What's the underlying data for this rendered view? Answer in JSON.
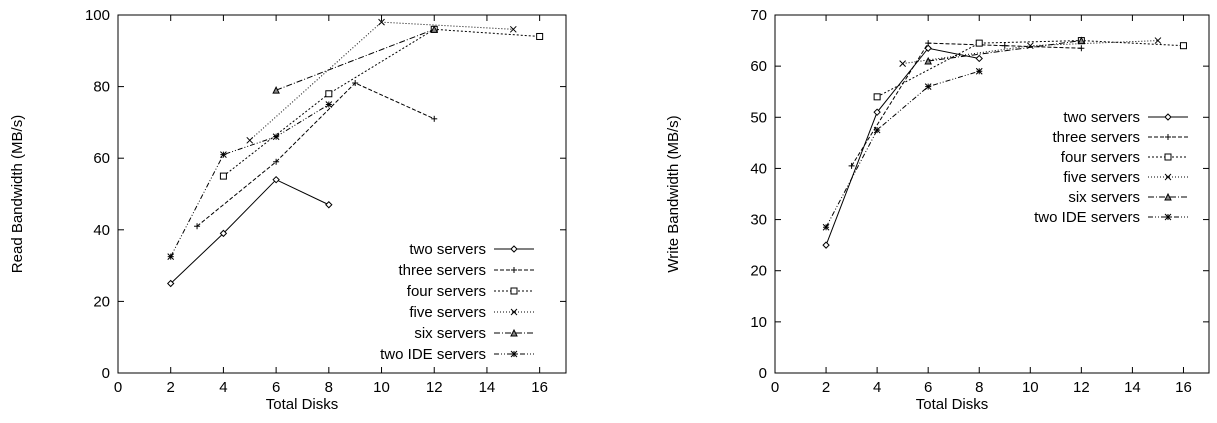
{
  "chart_data": [
    {
      "type": "line",
      "xlabel": "Total Disks",
      "ylabel": "Read Bandwidth (MB/s)",
      "xlim": [
        0,
        17
      ],
      "ylim": [
        0,
        100
      ],
      "xticks": [
        0,
        2,
        4,
        6,
        8,
        10,
        12,
        14,
        16
      ],
      "yticks": [
        0,
        20,
        40,
        60,
        80,
        100
      ],
      "legend_position": "center-right",
      "series": [
        {
          "name": "two servers",
          "x": [
            2,
            4,
            6,
            8
          ],
          "y": [
            25,
            39,
            54,
            47
          ]
        },
        {
          "name": "three servers",
          "x": [
            3,
            6,
            9,
            12
          ],
          "y": [
            41,
            59,
            81,
            71
          ]
        },
        {
          "name": "four servers",
          "x": [
            4,
            8,
            12,
            16
          ],
          "y": [
            55,
            78,
            96,
            94
          ]
        },
        {
          "name": "five servers",
          "x": [
            5,
            10,
            15
          ],
          "y": [
            65,
            98,
            96
          ]
        },
        {
          "name": "six servers",
          "x": [
            6,
            12
          ],
          "y": [
            79,
            96
          ]
        },
        {
          "name": "two IDE servers",
          "x": [
            2,
            4,
            6,
            8
          ],
          "y": [
            32.5,
            61,
            66,
            75
          ]
        }
      ]
    },
    {
      "type": "line",
      "xlabel": "Total Disks",
      "ylabel": "Write Bandwidth (MB/s)",
      "xlim": [
        0,
        17
      ],
      "ylim": [
        0,
        70
      ],
      "xticks": [
        0,
        2,
        4,
        6,
        8,
        10,
        12,
        14,
        16
      ],
      "yticks": [
        0,
        10,
        20,
        30,
        40,
        50,
        60,
        70
      ],
      "legend_position": "center-right",
      "series": [
        {
          "name": "two servers",
          "x": [
            2,
            4,
            6,
            8
          ],
          "y": [
            25,
            51,
            63.5,
            61.5
          ]
        },
        {
          "name": "three servers",
          "x": [
            3,
            6,
            9,
            12
          ],
          "y": [
            40.5,
            64.5,
            64,
            63.5
          ]
        },
        {
          "name": "four servers",
          "x": [
            4,
            8,
            12,
            16
          ],
          "y": [
            54,
            64.5,
            65,
            64
          ]
        },
        {
          "name": "five servers",
          "x": [
            5,
            10,
            15
          ],
          "y": [
            60.5,
            64,
            65
          ]
        },
        {
          "name": "six servers",
          "x": [
            6,
            12
          ],
          "y": [
            61,
            65
          ]
        },
        {
          "name": "two IDE servers",
          "x": [
            2,
            4,
            6,
            8
          ],
          "y": [
            28.5,
            47.5,
            56,
            59
          ]
        }
      ]
    }
  ]
}
